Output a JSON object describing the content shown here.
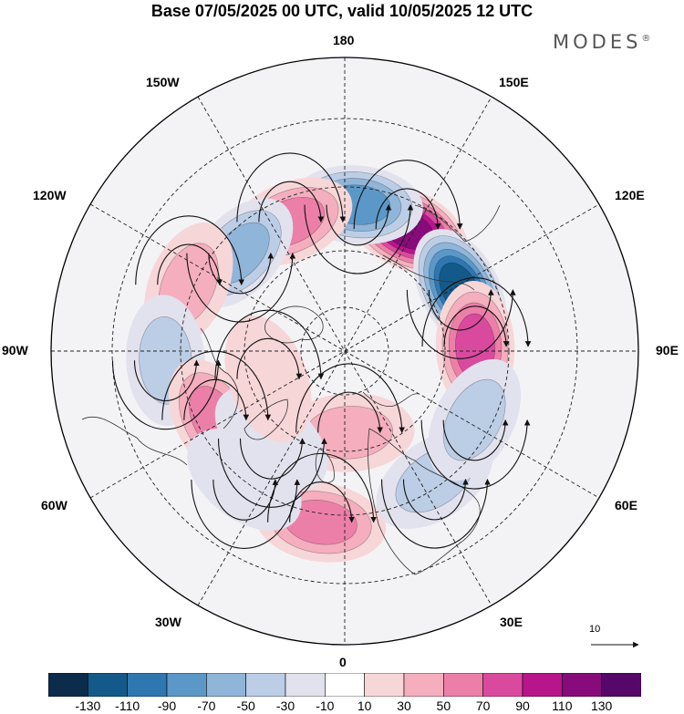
{
  "header": {
    "title": "Base 07/05/2025 00 UTC, valid 10/05/2025 12 UTC",
    "brand": "MODES",
    "brand_mark": "®"
  },
  "map": {
    "projection": "north-polar-stereographic",
    "lon_labels": [
      {
        "key": "180",
        "text": "180"
      },
      {
        "key": "150E",
        "text": "150E"
      },
      {
        "key": "120E",
        "text": "120E"
      },
      {
        "key": "90E",
        "text": "90E"
      },
      {
        "key": "60E",
        "text": "60E"
      },
      {
        "key": "30E",
        "text": "30E"
      },
      {
        "key": "0",
        "text": "0"
      },
      {
        "key": "30W",
        "text": "30W"
      },
      {
        "key": "60W",
        "text": "60W"
      },
      {
        "key": "90W",
        "text": "90W"
      },
      {
        "key": "120W",
        "text": "120W"
      },
      {
        "key": "150W",
        "text": "150W"
      }
    ],
    "reference_vector_label": "10"
  },
  "colorbar": {
    "colors": [
      "#0b2c4b",
      "#135a8a",
      "#2f77b1",
      "#5b98c8",
      "#8fb5d9",
      "#bccde6",
      "#e2e2ee",
      "#ffffff",
      "#f7d6d8",
      "#f4aebd",
      "#ec7fa8",
      "#d94a9f",
      "#b8158c",
      "#880b7b",
      "#56086a"
    ],
    "ticks": [
      "-130",
      "-110",
      "-90",
      "-70",
      "-50",
      "-30",
      "-10",
      "10",
      "30",
      "50",
      "70",
      "90",
      "110",
      "130"
    ]
  },
  "chart_data": {
    "type": "heatmap",
    "title": "Base 07/05/2025 00 UTC, valid 10/05/2025 12 UTC",
    "levels": [
      -130,
      -110,
      -90,
      -70,
      -50,
      -30,
      -10,
      10,
      30,
      50,
      70,
      90,
      110,
      130
    ],
    "anomaly_centers": [
      {
        "lon_deg": 153,
        "lat_deg": 48,
        "value": 115
      },
      {
        "lon_deg": 118,
        "lat_deg": 50,
        "value": -115
      },
      {
        "lon_deg": 92,
        "lat_deg": 50,
        "value": 85
      },
      {
        "lon_deg": 175,
        "lat_deg": 45,
        "value": -75
      },
      {
        "lon_deg": -157,
        "lat_deg": 47,
        "value": 65
      },
      {
        "lon_deg": -133,
        "lat_deg": 46,
        "value": -65
      },
      {
        "lon_deg": -113,
        "lat_deg": 38,
        "value": 45
      },
      {
        "lon_deg": -87,
        "lat_deg": 35,
        "value": -45
      },
      {
        "lon_deg": -62,
        "lat_deg": 45,
        "value": 55
      },
      {
        "lon_deg": -8,
        "lat_deg": 37,
        "value": 65
      },
      {
        "lon_deg": 3,
        "lat_deg": 65,
        "value": 35
      },
      {
        "lon_deg": 35,
        "lat_deg": 42,
        "value": -35
      },
      {
        "lon_deg": 62,
        "lat_deg": 45,
        "value": -35
      },
      {
        "lon_deg": -40,
        "lat_deg": 55,
        "value": -25
      },
      {
        "lon_deg": -38,
        "lat_deg": 40,
        "value": -25
      },
      {
        "lon_deg": -70,
        "lat_deg": 65,
        "value": 25
      }
    ]
  }
}
